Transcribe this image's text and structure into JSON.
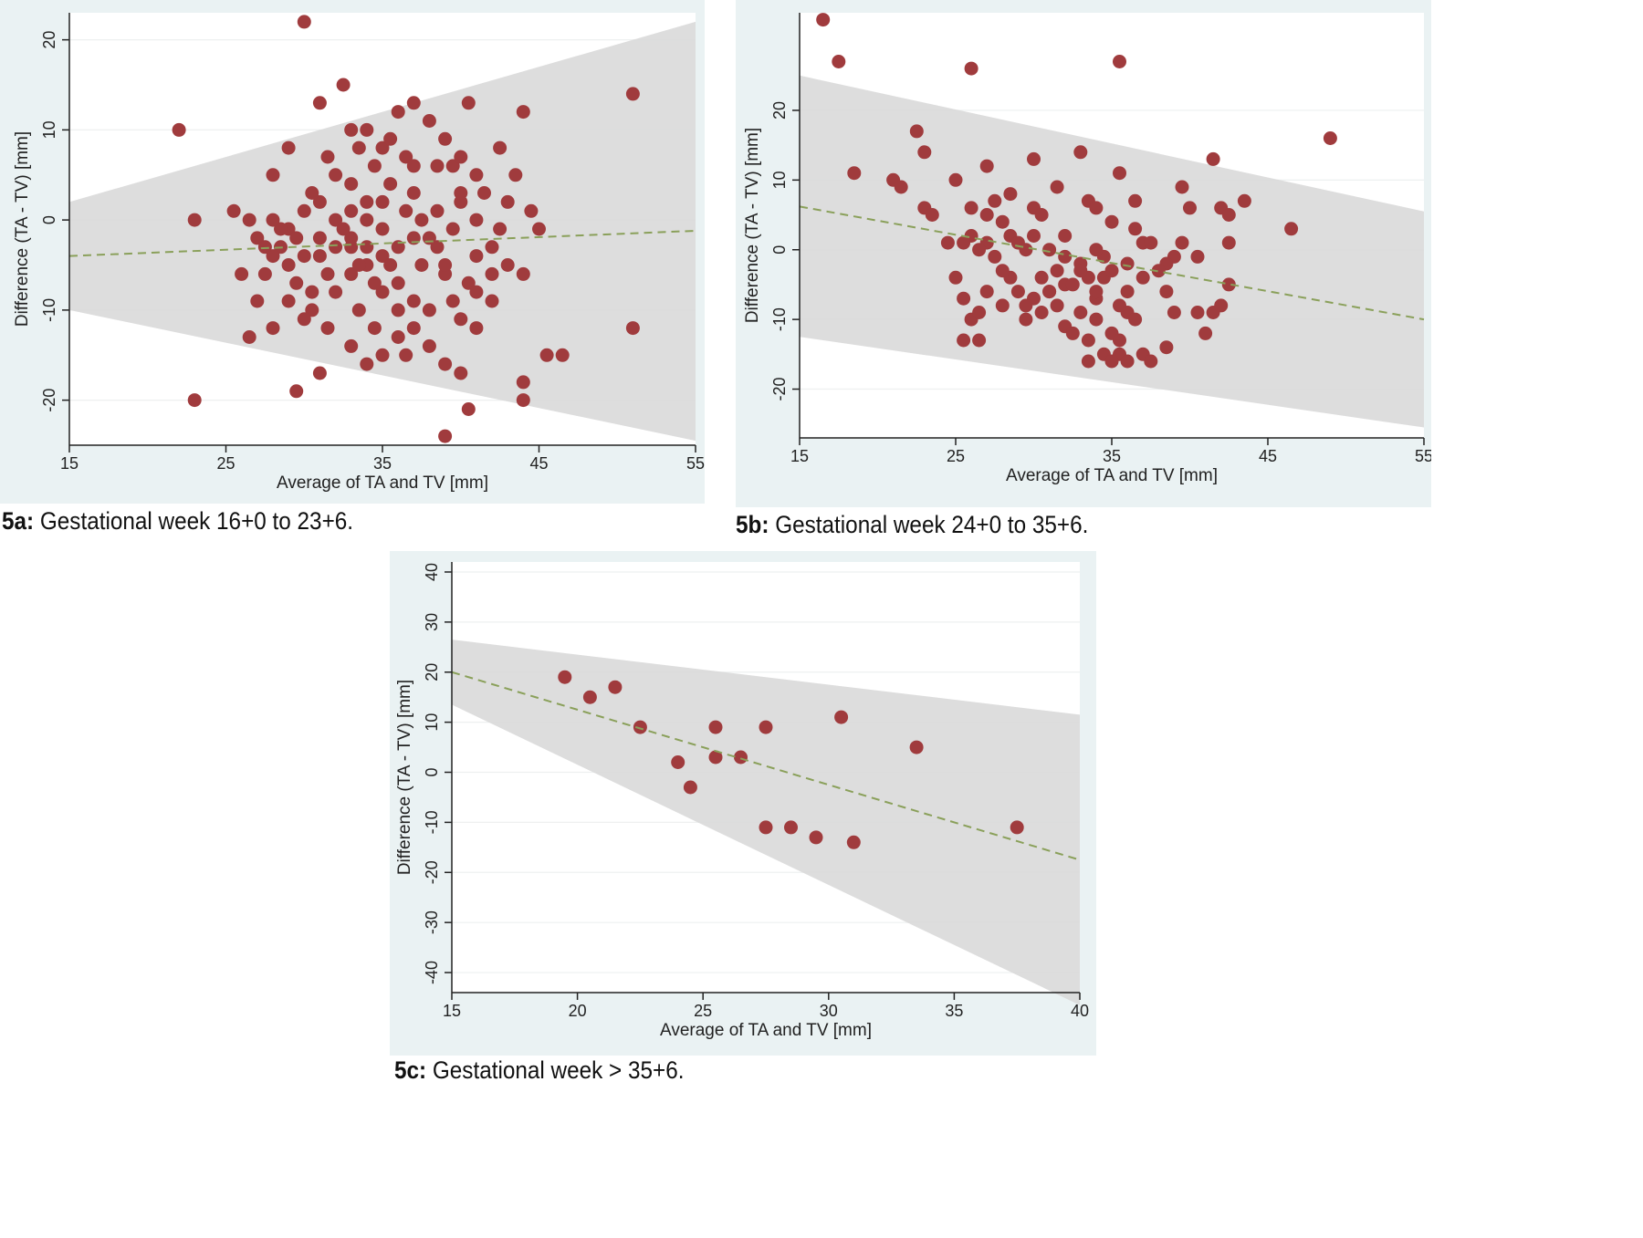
{
  "colors": {
    "panel_bg": "#eaf2f3",
    "plot_bg": "#ffffff",
    "band": "#d9d9d9",
    "point": "#a03b3d",
    "trend": "#8aa05a",
    "axis": "#222222",
    "grid": "#eef0f0"
  },
  "captions": [
    {
      "label": "5a:",
      "text": " Gestational week 16+0 to 23+6."
    },
    {
      "label": "5b:",
      "text": " Gestational week 24+0 to 35+6."
    },
    {
      "label": "5c:",
      "text": " Gestational week > 35+6."
    }
  ],
  "chart_data": [
    {
      "id": "5a",
      "type": "scatter",
      "xlabel": "Average of TA and TV [mm]",
      "ylabel": "Difference (TA - TV) [mm]",
      "xlim": [
        15,
        55
      ],
      "ylim": [
        -25,
        23
      ],
      "xticks": [
        "15",
        "25",
        "35",
        "45",
        "55"
      ],
      "yticks": [
        "-20",
        "-10",
        "0",
        "10",
        "20"
      ],
      "grid": true,
      "band_upper": [
        [
          15,
          2
        ],
        [
          55,
          22
        ]
      ],
      "band_lower": [
        [
          15,
          -10
        ],
        [
          55,
          -24.5
        ]
      ],
      "trend": [
        [
          15,
          -4
        ],
        [
          55,
          -1.2
        ]
      ],
      "points": [
        [
          30,
          22
        ],
        [
          32.5,
          15
        ],
        [
          31,
          13
        ],
        [
          22,
          10
        ],
        [
          23,
          0
        ],
        [
          23,
          -20
        ],
        [
          51,
          14
        ],
        [
          51,
          -12
        ],
        [
          44,
          12
        ],
        [
          44,
          -18
        ],
        [
          44,
          -20
        ],
        [
          46.5,
          -15
        ],
        [
          45.5,
          -15
        ],
        [
          39,
          -24
        ],
        [
          40.5,
          -21
        ],
        [
          29.5,
          -19
        ],
        [
          31,
          -17
        ],
        [
          26.5,
          -13
        ],
        [
          29,
          -9
        ],
        [
          28.5,
          -3
        ],
        [
          27,
          -2
        ],
        [
          26,
          -6
        ],
        [
          28,
          5
        ],
        [
          29,
          8
        ],
        [
          36,
          12
        ],
        [
          38,
          11
        ],
        [
          40.5,
          13
        ],
        [
          37,
          13
        ],
        [
          33,
          10
        ],
        [
          34,
          10
        ],
        [
          35,
          8
        ],
        [
          36.5,
          7
        ],
        [
          38.5,
          6
        ],
        [
          39.5,
          6
        ],
        [
          42.5,
          8
        ],
        [
          41,
          5
        ],
        [
          43.5,
          5
        ],
        [
          40,
          2
        ],
        [
          41,
          0
        ],
        [
          42,
          -3
        ],
        [
          43,
          -5
        ],
        [
          44,
          -6
        ],
        [
          44.5,
          1
        ],
        [
          45,
          -1
        ],
        [
          40.5,
          -7
        ],
        [
          39.5,
          -9
        ],
        [
          38,
          -10
        ],
        [
          37,
          -12
        ],
        [
          36,
          -13
        ],
        [
          35,
          -15
        ],
        [
          34,
          -16
        ],
        [
          33,
          -14
        ],
        [
          31.5,
          -12
        ],
        [
          30.5,
          -10
        ],
        [
          29.5,
          -7
        ],
        [
          30,
          -4
        ],
        [
          31,
          -2
        ],
        [
          32,
          0
        ],
        [
          33,
          1
        ],
        [
          34,
          2
        ],
        [
          35,
          -1
        ],
        [
          36,
          -3
        ],
        [
          34,
          -5
        ],
        [
          33,
          -6
        ],
        [
          32,
          -8
        ],
        [
          35,
          -8
        ],
        [
          36,
          -10
        ],
        [
          37.5,
          -5
        ],
        [
          38.5,
          -3
        ],
        [
          39.5,
          -1
        ],
        [
          40,
          3
        ],
        [
          38.5,
          1
        ],
        [
          37,
          3
        ],
        [
          35.5,
          4
        ],
        [
          34.5,
          6
        ],
        [
          33,
          4
        ],
        [
          32,
          5
        ],
        [
          31,
          2
        ],
        [
          30,
          1
        ],
        [
          29,
          -1
        ],
        [
          28,
          -4
        ],
        [
          27.5,
          -6
        ],
        [
          27,
          -9
        ],
        [
          28,
          -12
        ],
        [
          30,
          -11
        ],
        [
          31.5,
          -6
        ],
        [
          29,
          -5
        ],
        [
          30.5,
          -8
        ],
        [
          33.5,
          -10
        ],
        [
          34.5,
          -12
        ],
        [
          36,
          -7
        ],
        [
          37,
          -9
        ],
        [
          38,
          -14
        ],
        [
          39,
          -16
        ],
        [
          40,
          -17
        ],
        [
          41,
          -12
        ],
        [
          42,
          -9
        ],
        [
          40,
          -11
        ],
        [
          37.5,
          0
        ],
        [
          36.5,
          1
        ],
        [
          35,
          2
        ],
        [
          34,
          0
        ],
        [
          33,
          -2
        ],
        [
          32,
          -3
        ],
        [
          31,
          -4
        ],
        [
          29.5,
          -2
        ],
        [
          28.5,
          -1
        ],
        [
          27.5,
          -3
        ],
        [
          26.5,
          0
        ],
        [
          25.5,
          1
        ],
        [
          28,
          0
        ],
        [
          30.5,
          3
        ],
        [
          31.5,
          7
        ],
        [
          33.5,
          8
        ],
        [
          35.5,
          9
        ],
        [
          37,
          6
        ],
        [
          39,
          9
        ],
        [
          40,
          7
        ],
        [
          41.5,
          3
        ],
        [
          42.5,
          -1
        ],
        [
          43,
          2
        ],
        [
          41,
          -4
        ],
        [
          39,
          -6
        ],
        [
          36.5,
          -15
        ],
        [
          33,
          -3
        ],
        [
          34,
          -3
        ],
        [
          35,
          -4
        ],
        [
          32.5,
          -1
        ],
        [
          33.5,
          -5
        ],
        [
          34.5,
          -7
        ],
        [
          35.5,
          -5
        ],
        [
          37,
          -2
        ],
        [
          38,
          -2
        ],
        [
          39,
          -5
        ],
        [
          41,
          -8
        ],
        [
          42,
          -6
        ]
      ]
    },
    {
      "id": "5b",
      "type": "scatter",
      "xlabel": "Average of TA and TV [mm]",
      "ylabel": "Difference (TA - TV) [mm]",
      "xlim": [
        15,
        55
      ],
      "ylim": [
        -27,
        34
      ],
      "xticks": [
        "15",
        "25",
        "35",
        "45",
        "55"
      ],
      "yticks": [
        "-20",
        "-10",
        "0",
        "10",
        "20"
      ],
      "grid": true,
      "band_upper": [
        [
          15,
          25
        ],
        [
          55,
          5.5
        ]
      ],
      "band_lower": [
        [
          15,
          -12.5
        ],
        [
          55,
          -25.5
        ]
      ],
      "trend": [
        [
          15,
          6.2
        ],
        [
          55,
          -10
        ]
      ],
      "points": [
        [
          16.5,
          33
        ],
        [
          17.5,
          27
        ],
        [
          26,
          26
        ],
        [
          35.5,
          27
        ],
        [
          49,
          16
        ],
        [
          41.5,
          13
        ],
        [
          33,
          14
        ],
        [
          30,
          13
        ],
        [
          27,
          12
        ],
        [
          22.5,
          17
        ],
        [
          23,
          14
        ],
        [
          18.5,
          11
        ],
        [
          21,
          10
        ],
        [
          21.5,
          9
        ],
        [
          25,
          10
        ],
        [
          23,
          6
        ],
        [
          23.5,
          5
        ],
        [
          26,
          6
        ],
        [
          27.5,
          7
        ],
        [
          28,
          4
        ],
        [
          28.5,
          8
        ],
        [
          30,
          6
        ],
        [
          30.5,
          5
        ],
        [
          31.5,
          9
        ],
        [
          32,
          2
        ],
        [
          33.5,
          7
        ],
        [
          34,
          6
        ],
        [
          35,
          4
        ],
        [
          35.5,
          11
        ],
        [
          36.5,
          7
        ],
        [
          36.5,
          3
        ],
        [
          37,
          1
        ],
        [
          37.5,
          1
        ],
        [
          39.5,
          9
        ],
        [
          40,
          6
        ],
        [
          42,
          6
        ],
        [
          42.5,
          5
        ],
        [
          43.5,
          7
        ],
        [
          46.5,
          3
        ],
        [
          42.5,
          1
        ],
        [
          39.5,
          1
        ],
        [
          39,
          -1
        ],
        [
          40.5,
          -1
        ],
        [
          38.5,
          -2
        ],
        [
          38,
          -3
        ],
        [
          37,
          -4
        ],
        [
          36,
          -2
        ],
        [
          34.5,
          -1
        ],
        [
          34,
          0
        ],
        [
          33,
          -2
        ],
        [
          32,
          -5
        ],
        [
          31,
          -6
        ],
        [
          30,
          -7
        ],
        [
          29.5,
          -8
        ],
        [
          29,
          -6
        ],
        [
          28.5,
          -4
        ],
        [
          28,
          -3
        ],
        [
          27.5,
          -1
        ],
        [
          27,
          1
        ],
        [
          26.5,
          0
        ],
        [
          26,
          2
        ],
        [
          25.5,
          1
        ],
        [
          24.5,
          1
        ],
        [
          25,
          -4
        ],
        [
          25.5,
          -7
        ],
        [
          26,
          -10
        ],
        [
          26.5,
          -9
        ],
        [
          25.5,
          -13
        ],
        [
          26.5,
          -13
        ],
        [
          27,
          -6
        ],
        [
          28,
          -8
        ],
        [
          29.5,
          -10
        ],
        [
          30.5,
          -9
        ],
        [
          31,
          -6
        ],
        [
          31.5,
          -8
        ],
        [
          32,
          -11
        ],
        [
          32.5,
          -12
        ],
        [
          33,
          -9
        ],
        [
          33.5,
          -13
        ],
        [
          34,
          -10
        ],
        [
          33.5,
          -16
        ],
        [
          34.5,
          -15
        ],
        [
          35,
          -12
        ],
        [
          35.5,
          -13
        ],
        [
          36,
          -9
        ],
        [
          36.5,
          -10
        ],
        [
          35.5,
          -15
        ],
        [
          36,
          -16
        ],
        [
          37,
          -15
        ],
        [
          37.5,
          -16
        ],
        [
          38.5,
          -14
        ],
        [
          39,
          -9
        ],
        [
          40.5,
          -9
        ],
        [
          41,
          -12
        ],
        [
          41.5,
          -9
        ],
        [
          42,
          -8
        ],
        [
          42.5,
          -5
        ],
        [
          38.5,
          -6
        ],
        [
          34.5,
          -4
        ],
        [
          33.5,
          -4
        ],
        [
          32.5,
          -5
        ],
        [
          30.5,
          -4
        ],
        [
          29.5,
          0
        ],
        [
          30,
          2
        ],
        [
          31,
          0
        ],
        [
          32,
          -1
        ],
        [
          33,
          -3
        ],
        [
          35,
          -3
        ],
        [
          36,
          -6
        ],
        [
          34,
          -7
        ],
        [
          35.5,
          -8
        ],
        [
          31.5,
          -3
        ],
        [
          28.5,
          2
        ],
        [
          27,
          5
        ],
        [
          29,
          1
        ],
        [
          35,
          -16
        ],
        [
          34,
          -6
        ]
      ]
    },
    {
      "id": "5c",
      "type": "scatter",
      "xlabel": "Average of TA and TV [mm]",
      "ylabel": "Difference (TA - TV) [mm]",
      "xlim": [
        15,
        40
      ],
      "ylim": [
        -44,
        42
      ],
      "xticks": [
        "15",
        "20",
        "25",
        "30",
        "35",
        "40"
      ],
      "yticks": [
        "-40",
        "-30",
        "-20",
        "-10",
        "0",
        "10",
        "20",
        "30",
        "40"
      ],
      "grid": true,
      "band_upper": [
        [
          15,
          26.5
        ],
        [
          40,
          11.5
        ]
      ],
      "band_lower": [
        [
          15,
          13.5
        ],
        [
          40,
          -46.5
        ]
      ],
      "trend": [
        [
          15,
          20
        ],
        [
          40,
          -17.5
        ]
      ],
      "points": [
        [
          19.5,
          19
        ],
        [
          20.5,
          15
        ],
        [
          21.5,
          17
        ],
        [
          22.5,
          9
        ],
        [
          24,
          2
        ],
        [
          24.5,
          -3
        ],
        [
          25.5,
          9
        ],
        [
          25.5,
          3
        ],
        [
          26.5,
          3
        ],
        [
          27.5,
          9
        ],
        [
          27.5,
          -11
        ],
        [
          28.5,
          -11
        ],
        [
          29.5,
          -13
        ],
        [
          30.5,
          11
        ],
        [
          31,
          -14
        ],
        [
          33.5,
          5
        ],
        [
          37.5,
          -11
        ]
      ]
    }
  ]
}
